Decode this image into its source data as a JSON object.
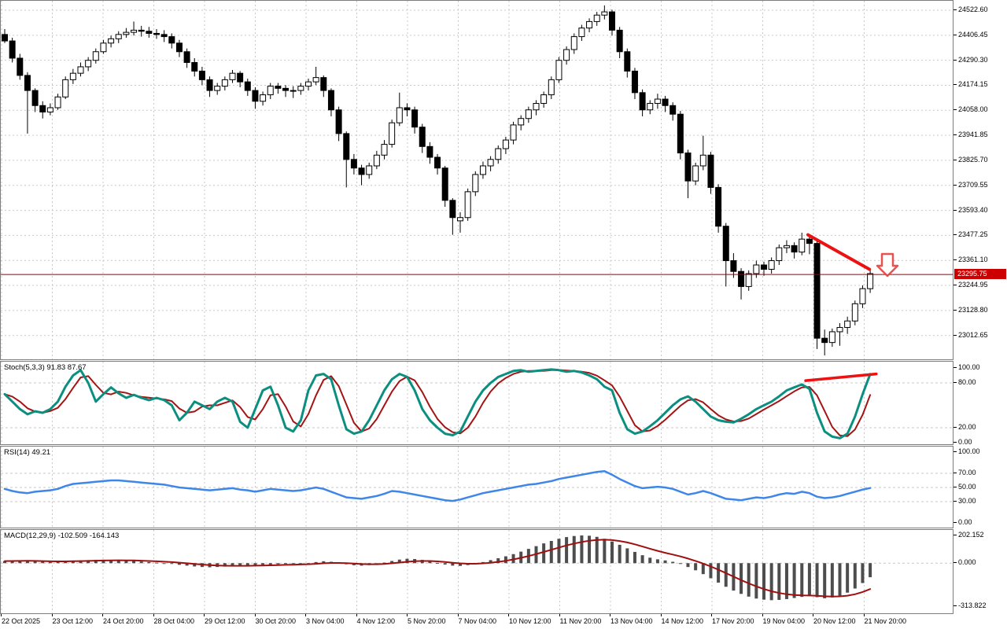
{
  "colors": {
    "grid": "#c9c9c9",
    "candle_up_fill": "#ffffff",
    "candle_down_fill": "#000000",
    "candle_border": "#000000",
    "price_line": "#990000",
    "price_badge_bg": "#cc0000",
    "price_badge_text": "#ffffff",
    "trendline": "#ee1111",
    "arrow_stroke": "#e5413f",
    "stoch_k": "#0b8f80",
    "stoch_d": "#a31515",
    "rsi_line": "#3e86e8",
    "macd_hist": "#4d4d4d",
    "macd_signal": "#a00f0f"
  },
  "price_axis": {
    "ticks": [
      24522.6,
      24406.45,
      24290.3,
      24174.15,
      24058.0,
      23941.85,
      23825.7,
      23709.55,
      23593.4,
      23477.25,
      23361.1,
      23244.95,
      23128.8,
      23012.65
    ],
    "current_price_label": "23295.75"
  },
  "time_axis": {
    "labels": [
      "22 Oct 2025",
      "23 Oct 12:00",
      "24 Oct 20:00",
      "28 Oct 04:00",
      "29 Oct 12:00",
      "30 Oct 20:00",
      "3 Nov 04:00",
      "4 Nov 12:00",
      "5 Nov 20:00",
      "7 Nov 04:00",
      "10 Nov 12:00",
      "11 Nov 20:00",
      "13 Nov 04:00",
      "14 Nov 12:00",
      "17 Nov 20:00",
      "19 Nov 04:00",
      "20 Nov 12:00",
      "21 Nov 20:00"
    ]
  },
  "chart_data": [
    {
      "type": "candlestick",
      "panel": "main",
      "title": "",
      "ylim": [
        22900,
        24570
      ],
      "grid": true,
      "current_price": 23295.75,
      "annotations": {
        "price_line": 23295.75,
        "trendline": {
          "i1": 105.8,
          "p1": 23480,
          "i2": 113.9,
          "p2": 23320
        },
        "down_arrow": {
          "cx": 1127,
          "top": 322,
          "bottom": 350
        }
      },
      "candles": [
        [
          24410,
          24435,
          24370,
          24380
        ],
        [
          24380,
          24395,
          24280,
          24300
        ],
        [
          24300,
          24320,
          24200,
          24220
        ],
        [
          24220,
          24235,
          23950,
          24150
        ],
        [
          24150,
          24160,
          24050,
          24080
        ],
        [
          24080,
          24100,
          24020,
          24050
        ],
        [
          24050,
          24090,
          24035,
          24070
        ],
        [
          24070,
          24135,
          24060,
          24120
        ],
        [
          24120,
          24215,
          24110,
          24200
        ],
        [
          24200,
          24250,
          24180,
          24230
        ],
        [
          24230,
          24280,
          24215,
          24260
        ],
        [
          24260,
          24305,
          24240,
          24290
        ],
        [
          24290,
          24345,
          24275,
          24330
        ],
        [
          24330,
          24385,
          24320,
          24370
        ],
        [
          24370,
          24405,
          24350,
          24390
        ],
        [
          24390,
          24425,
          24370,
          24410
        ],
        [
          24410,
          24440,
          24395,
          24420
        ],
        [
          24420,
          24470,
          24405,
          24430
        ],
        [
          24430,
          24450,
          24400,
          24425
        ],
        [
          24425,
          24445,
          24395,
          24415
        ],
        [
          24415,
          24435,
          24390,
          24410
        ],
        [
          24410,
          24430,
          24375,
          24400
        ],
        [
          24400,
          24415,
          24345,
          24370
        ],
        [
          24370,
          24385,
          24305,
          24330
        ],
        [
          24330,
          24345,
          24255,
          24280
        ],
        [
          24280,
          24300,
          24215,
          24240
        ],
        [
          24240,
          24260,
          24175,
          24200
        ],
        [
          24200,
          24215,
          24120,
          24150
        ],
        [
          24150,
          24185,
          24130,
          24170
        ],
        [
          24170,
          24215,
          24150,
          24200
        ],
        [
          24200,
          24245,
          24185,
          24230
        ],
        [
          24230,
          24240,
          24165,
          24190
        ],
        [
          24190,
          24205,
          24125,
          24150
        ],
        [
          24150,
          24165,
          24065,
          24100
        ],
        [
          24100,
          24145,
          24080,
          24130
        ],
        [
          24130,
          24185,
          24110,
          24170
        ],
        [
          24170,
          24185,
          24135,
          24160
        ],
        [
          24160,
          24175,
          24120,
          24150
        ],
        [
          24150,
          24170,
          24115,
          24150
        ],
        [
          24150,
          24185,
          24130,
          24170
        ],
        [
          24170,
          24205,
          24150,
          24190
        ],
        [
          24190,
          24260,
          24175,
          24210
        ],
        [
          24210,
          24220,
          24120,
          24150
        ],
        [
          24150,
          24160,
          24030,
          24060
        ],
        [
          24060,
          24075,
          23915,
          23950
        ],
        [
          23950,
          23960,
          23700,
          23830
        ],
        [
          23830,
          23855,
          23760,
          23790
        ],
        [
          23790,
          23805,
          23710,
          23760
        ],
        [
          23760,
          23815,
          23740,
          23800
        ],
        [
          23800,
          23870,
          23785,
          23850
        ],
        [
          23850,
          23920,
          23830,
          23900
        ],
        [
          23900,
          24015,
          23885,
          24000
        ],
        [
          24000,
          24140,
          23985,
          24070
        ],
        [
          24070,
          24090,
          24030,
          24060
        ],
        [
          24060,
          24075,
          23950,
          23980
        ],
        [
          23980,
          23995,
          23860,
          23890
        ],
        [
          23890,
          23910,
          23810,
          23840
        ],
        [
          23840,
          23855,
          23760,
          23790
        ],
        [
          23790,
          23800,
          23610,
          23640
        ],
        [
          23640,
          23650,
          23480,
          23560
        ],
        [
          23545,
          23585,
          23490,
          23560
        ],
        [
          23560,
          23695,
          23545,
          23680
        ],
        [
          23680,
          23775,
          23660,
          23760
        ],
        [
          23760,
          23820,
          23740,
          23800
        ],
        [
          23800,
          23845,
          23775,
          23830
        ],
        [
          23830,
          23895,
          23810,
          23880
        ],
        [
          23880,
          23935,
          23855,
          23920
        ],
        [
          23920,
          24005,
          23900,
          23990
        ],
        [
          23990,
          24035,
          23965,
          24020
        ],
        [
          24020,
          24075,
          24000,
          24060
        ],
        [
          24060,
          24105,
          24035,
          24090
        ],
        [
          24090,
          24145,
          24070,
          24130
        ],
        [
          24130,
          24215,
          24110,
          24200
        ],
        [
          24200,
          24305,
          24185,
          24290
        ],
        [
          24290,
          24355,
          24270,
          24340
        ],
        [
          24340,
          24415,
          24320,
          24400
        ],
        [
          24400,
          24455,
          24380,
          24440
        ],
        [
          24440,
          24485,
          24420,
          24470
        ],
        [
          24470,
          24515,
          24450,
          24500
        ],
        [
          24500,
          24545,
          24480,
          24515
        ],
        [
          24515,
          24525,
          24405,
          24430
        ],
        [
          24430,
          24445,
          24300,
          24330
        ],
        [
          24330,
          24345,
          24210,
          24240
        ],
        [
          24240,
          24255,
          24110,
          24140
        ],
        [
          24140,
          24155,
          24030,
          24060
        ],
        [
          24060,
          24105,
          24040,
          24090
        ],
        [
          24090,
          24135,
          24065,
          24110
        ],
        [
          24110,
          24125,
          24050,
          24080
        ],
        [
          24080,
          24095,
          24010,
          24040
        ],
        [
          24040,
          24055,
          23830,
          23860
        ],
        [
          23860,
          23875,
          23650,
          23730
        ],
        [
          23730,
          23815,
          23710,
          23800
        ],
        [
          23800,
          23940,
          23780,
          23850
        ],
        [
          23850,
          23865,
          23670,
          23700
        ],
        [
          23700,
          23715,
          23490,
          23520
        ],
        [
          23520,
          23535,
          23240,
          23360
        ],
        [
          23360,
          23395,
          23280,
          23310
        ],
        [
          23310,
          23325,
          23180,
          23240
        ],
        [
          23240,
          23315,
          23220,
          23300
        ],
        [
          23300,
          23360,
          23280,
          23340
        ],
        [
          23340,
          23355,
          23290,
          23320
        ],
        [
          23320,
          23375,
          23300,
          23360
        ],
        [
          23360,
          23435,
          23340,
          23420
        ],
        [
          23420,
          23455,
          23395,
          23430
        ],
        [
          23430,
          23445,
          23370,
          23400
        ],
        [
          23400,
          23490,
          23385,
          23460
        ],
        [
          23460,
          23470,
          23390,
          23440
        ],
        [
          23440,
          23450,
          22950,
          23000
        ],
        [
          23000,
          23040,
          22920,
          22980
        ],
        [
          22980,
          23045,
          22960,
          23030
        ],
        [
          23030,
          23070,
          22965,
          23050
        ],
        [
          23050,
          23100,
          23020,
          23080
        ],
        [
          23080,
          23175,
          23060,
          23160
        ],
        [
          23160,
          23245,
          23140,
          23230
        ],
        [
          23230,
          23320,
          23210,
          23300
        ]
      ]
    },
    {
      "type": "line",
      "panel": "stoch",
      "label": "Stoch(5,3,3) 91.83 87.67",
      "last_k": 91.83,
      "last_d": 87.67,
      "ylim": [
        0,
        100
      ],
      "levels": [
        100,
        80,
        20,
        0
      ],
      "dashed_levels": [
        80,
        20
      ],
      "trendline": {
        "i1": 105.5,
        "v1": 83,
        "i2": 114.8,
        "v2": 92
      },
      "k_values": [
        65,
        55,
        45,
        38,
        42,
        40,
        45,
        55,
        75,
        90,
        97,
        80,
        55,
        65,
        74,
        66,
        60,
        64,
        60,
        57,
        60,
        57,
        50,
        30,
        40,
        55,
        50,
        45,
        55,
        60,
        55,
        28,
        20,
        45,
        70,
        75,
        50,
        20,
        15,
        30,
        70,
        90,
        92,
        85,
        50,
        18,
        12,
        15,
        30,
        50,
        70,
        85,
        92,
        88,
        70,
        45,
        30,
        20,
        12,
        10,
        15,
        35,
        55,
        70,
        80,
        88,
        92,
        96,
        97,
        95,
        96,
        97,
        98,
        97,
        95,
        96,
        94,
        90,
        85,
        75,
        70,
        40,
        18,
        12,
        15,
        22,
        30,
        40,
        50,
        58,
        62,
        55,
        45,
        35,
        30,
        28,
        27,
        32,
        38,
        45,
        50,
        55,
        62,
        70,
        74,
        78,
        72,
        40,
        15,
        8,
        6,
        12,
        35,
        65,
        91.83
      ]
    },
    {
      "type": "line",
      "panel": "rsi",
      "label": "RSI(14) 49.21",
      "last_value": 49.21,
      "ylim": [
        0,
        100
      ],
      "levels": [
        100,
        70,
        50,
        30,
        0
      ],
      "dashed_levels": [
        70,
        50,
        30
      ],
      "values": [
        48,
        45,
        43,
        42,
        44,
        45,
        46,
        48,
        52,
        55,
        56,
        57,
        58,
        59,
        60,
        60,
        59,
        58,
        57,
        56,
        55,
        54,
        52,
        50,
        49,
        48,
        47,
        46,
        47,
        48,
        49,
        47,
        46,
        44,
        46,
        48,
        47,
        46,
        45,
        46,
        48,
        50,
        48,
        44,
        40,
        36,
        35,
        34,
        36,
        38,
        41,
        45,
        44,
        42,
        40,
        38,
        36,
        34,
        32,
        31,
        33,
        36,
        39,
        42,
        44,
        46,
        48,
        50,
        52,
        54,
        55,
        57,
        59,
        62,
        64,
        66,
        68,
        70,
        72,
        73,
        68,
        62,
        57,
        52,
        49,
        50,
        51,
        50,
        48,
        44,
        40,
        42,
        45,
        42,
        38,
        34,
        33,
        32,
        34,
        36,
        35,
        37,
        40,
        42,
        41,
        44,
        42,
        37,
        35,
        36,
        38,
        41,
        44,
        47,
        49.21
      ]
    },
    {
      "type": "bar",
      "panel": "macd",
      "label": "MACD(12,29,9) -102.509 -164.143",
      "last_macd": -102.509,
      "last_signal": -164.143,
      "levels": [
        202.152,
        0.0,
        -313.822
      ],
      "dashed_levels": [
        0
      ],
      "histogram": [
        15,
        18,
        20,
        18,
        15,
        10,
        8,
        10,
        14,
        18,
        20,
        22,
        24,
        25,
        24,
        22,
        20,
        16,
        12,
        8,
        4,
        0,
        -5,
        -12,
        -18,
        -24,
        -28,
        -30,
        -28,
        -25,
        -22,
        -20,
        -18,
        -15,
        -12,
        -10,
        -8,
        -6,
        -5,
        -4,
        0,
        8,
        14,
        10,
        2,
        -8,
        -15,
        -18,
        -14,
        -6,
        4,
        16,
        26,
        32,
        30,
        24,
        14,
        2,
        -10,
        -18,
        -20,
        -14,
        -4,
        8,
        22,
        36,
        50,
        66,
        84,
        104,
        124,
        144,
        162,
        178,
        190,
        198,
        202,
        200,
        192,
        178,
        158,
        134,
        108,
        82,
        58,
        40,
        28,
        20,
        10,
        -6,
        -28,
        -52,
        -80,
        -110,
        -142,
        -172,
        -200,
        -224,
        -244,
        -258,
        -266,
        -270,
        -268,
        -262,
        -254,
        -246,
        -240,
        -248,
        -256,
        -250,
        -238,
        -215,
        -185,
        -145,
        -102.509
      ]
    }
  ]
}
